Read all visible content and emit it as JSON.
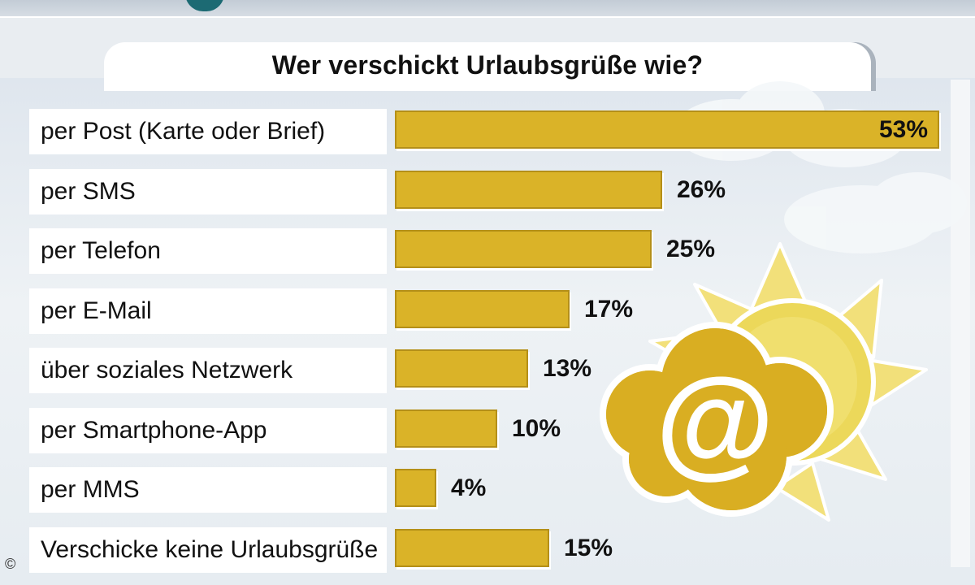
{
  "chart_data": {
    "type": "bar",
    "orientation": "horizontal",
    "title": "Wer verschickt Urlaubsgrüße wie?",
    "categories": [
      "per Post (Karte oder Brief)",
      "per SMS",
      "per Telefon",
      "per E-Mail",
      "über soziales Netzwerk",
      "per Smartphone-App",
      "per MMS",
      "Verschicke keine Urlaubsgrüße"
    ],
    "values": [
      53,
      26,
      25,
      17,
      13,
      10,
      4,
      15
    ],
    "value_labels": [
      "53%",
      "26%",
      "25%",
      "17%",
      "13%",
      "10%",
      "4%",
      "15%"
    ],
    "xlim": [
      0,
      53
    ],
    "unit": "%",
    "grid": false,
    "colors": {
      "bar": "#dab328",
      "bar_border": "#b48f18",
      "row_bg": "#ffffff"
    }
  },
  "decoration": {
    "icon": "at-sign-cloud-sun-icon"
  },
  "footer": {
    "copyright": "©"
  }
}
